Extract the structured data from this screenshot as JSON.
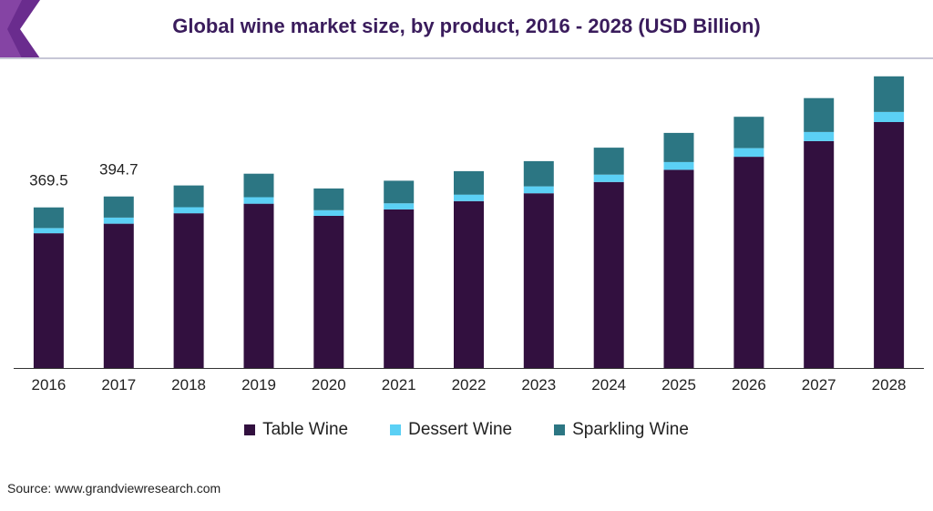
{
  "title": "Global wine market size, by product, 2016 - 2028 (USD Billion)",
  "source": "Source: www.grandviewresearch.com",
  "colors": {
    "table_wine": "#32103f",
    "dessert_wine": "#5bd0f5",
    "sparkling_wine": "#2c7683",
    "brand_accent": "#6a2c8e",
    "title_text": "#3a1c5c"
  },
  "chart_data": {
    "type": "bar",
    "stacked": true,
    "categories": [
      "2016",
      "2017",
      "2018",
      "2019",
      "2020",
      "2021",
      "2022",
      "2023",
      "2024",
      "2025",
      "2026",
      "2027",
      "2028"
    ],
    "series": [
      {
        "name": "Table Wine",
        "values": [
          310,
          332,
          356,
          378,
          350,
          365,
          384,
          402,
          428,
          456,
          486,
          522,
          566
        ]
      },
      {
        "name": "Dessert Wine",
        "values": [
          12,
          14,
          14,
          15,
          13,
          14,
          15,
          16,
          17,
          18,
          20,
          21,
          23
        ]
      },
      {
        "name": "Sparkling Wine",
        "values": [
          47.5,
          48.7,
          50,
          54,
          50,
          52,
          54,
          58,
          62,
          67,
          72,
          78,
          82
        ]
      }
    ],
    "data_labels": [
      {
        "category": "2016",
        "text": "369.5"
      },
      {
        "category": "2017",
        "text": "394.7"
      }
    ],
    "ylim": [
      0,
      700
    ],
    "grid": false,
    "legend": "bottom",
    "xlabel": "",
    "ylabel": ""
  }
}
